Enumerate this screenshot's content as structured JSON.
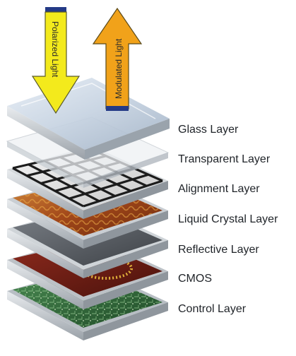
{
  "arrows": {
    "down_label": "Polarized Light",
    "up_label": "Modulated Light"
  },
  "layers": [
    {
      "key": "glass",
      "label": "Glass Layer"
    },
    {
      "key": "transparent",
      "label": "Transparent Layer"
    },
    {
      "key": "alignment",
      "label": "Alignment Layer"
    },
    {
      "key": "liquid",
      "label": "Liquid Crystal Layer"
    },
    {
      "key": "reflective",
      "label": "Reflective Layer"
    },
    {
      "key": "cmos",
      "label": "CMOS"
    },
    {
      "key": "control",
      "label": "Control Layer"
    }
  ],
  "colors": {
    "down_arrow": "#f3ea1c",
    "up_arrow": "#f1a21a",
    "arrow_band": "#243a86",
    "glass": "#c9d6e4",
    "liquid": "#a8541c",
    "cmos": "#6b1a12",
    "control": "#2f6b3a",
    "reflective": "#5d6166"
  }
}
